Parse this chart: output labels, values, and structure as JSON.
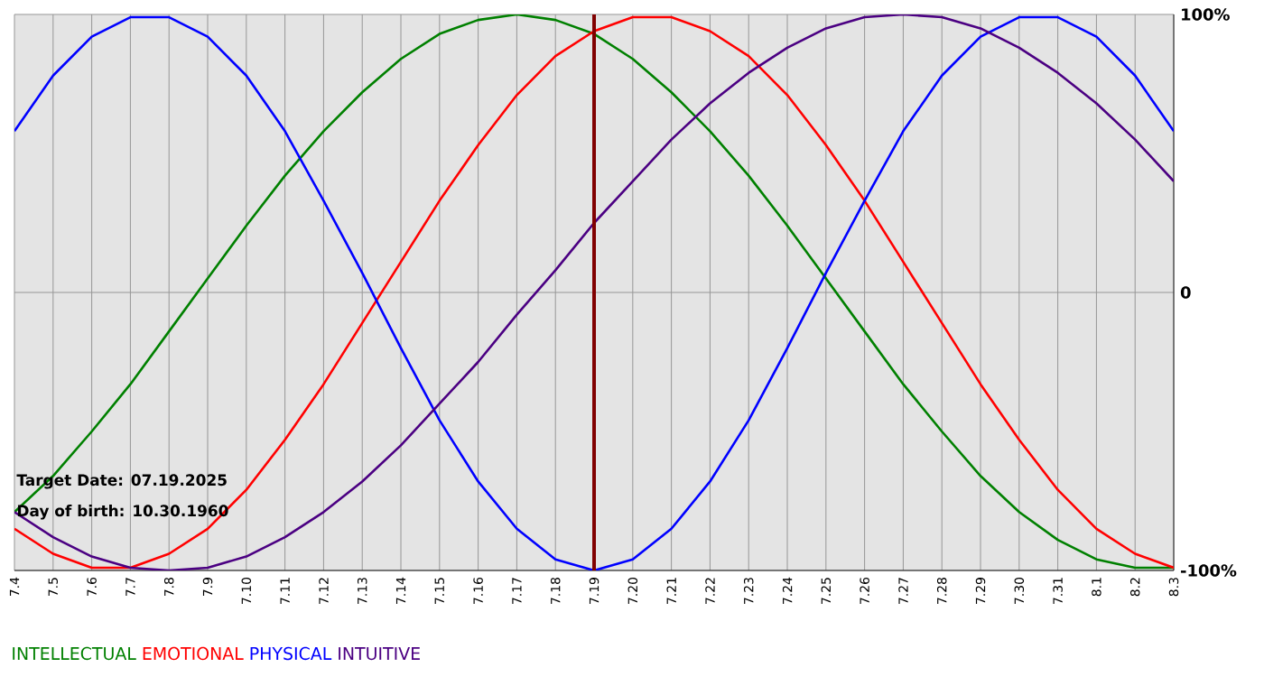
{
  "chart_data": {
    "type": "line",
    "categories": [
      "7.4",
      "7.5",
      "7.6",
      "7.7",
      "7.8",
      "7.9",
      "7.10",
      "7.11",
      "7.12",
      "7.13",
      "7.14",
      "7.15",
      "7.16",
      "7.17",
      "7.18",
      "7.19",
      "7.20",
      "7.21",
      "7.22",
      "7.23",
      "7.24",
      "7.25",
      "7.26",
      "7.27",
      "7.28",
      "7.29",
      "7.30",
      "7.31",
      "8.1",
      "8.2",
      "8.3"
    ],
    "series": [
      {
        "name": "INTELLECTUAL",
        "color": "#008000",
        "values": [
          -79,
          -66,
          -50,
          -33,
          -14,
          5,
          24,
          42,
          58,
          72,
          84,
          93,
          98,
          100,
          98,
          93,
          84,
          72,
          58,
          42,
          24,
          5,
          -14,
          -33,
          -50,
          -66,
          -79,
          -89,
          -96,
          -99,
          -99
        ]
      },
      {
        "name": "EMOTIONAL",
        "color": "#ff0000",
        "values": [
          -85,
          -94,
          -99,
          -99,
          -94,
          -85,
          -71,
          -53,
          -33,
          -11,
          11,
          33,
          53,
          71,
          85,
          94,
          99,
          99,
          94,
          85,
          71,
          53,
          33,
          11,
          -11,
          -33,
          -53,
          -71,
          -85,
          -94,
          -99
        ]
      },
      {
        "name": "PHYSICAL",
        "color": "#0000ff",
        "values": [
          58,
          78,
          92,
          99,
          99,
          92,
          78,
          58,
          33,
          7,
          -20,
          -46,
          -68,
          -85,
          -96,
          -100,
          -96,
          -85,
          -68,
          -46,
          -20,
          7,
          33,
          58,
          78,
          92,
          99,
          99,
          92,
          78,
          58
        ]
      },
      {
        "name": "INTUITIVE",
        "color": "#4b0082",
        "values": [
          -79,
          -88,
          -95,
          -99,
          -100,
          -99,
          -95,
          -88,
          -79,
          -68,
          -55,
          -40,
          -25,
          -8,
          8,
          25,
          40,
          55,
          68,
          79,
          88,
          95,
          99,
          100,
          99,
          95,
          88,
          79,
          68,
          55,
          40
        ]
      }
    ],
    "ylim": [
      -100,
      100
    ],
    "yticks": [
      {
        "value": -100,
        "label": "-100%"
      },
      0,
      {
        "value": 100,
        "label": "100%"
      }
    ],
    "grid": true,
    "legend": "bottom",
    "line_style": "solid",
    "ref_lines": [
      {
        "axis": "x",
        "value": "7.19",
        "color": "#800000"
      }
    ],
    "annotations": [
      "Target Date: 07.19.2025",
      "Day of birth: 10.30.1960"
    ]
  }
}
